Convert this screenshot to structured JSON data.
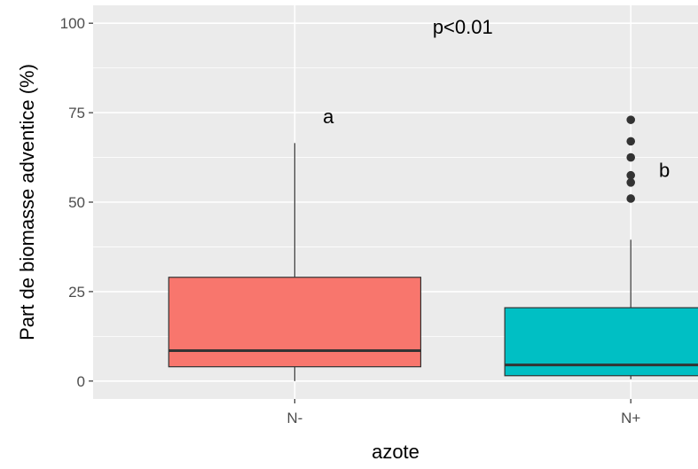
{
  "chart_data": {
    "type": "boxplot",
    "xlabel": "azote",
    "ylabel": "Part de biomasse adventice (%)",
    "categories": [
      "N-",
      "N+"
    ],
    "ylim": [
      -5,
      105
    ],
    "yticks": [
      0,
      25,
      50,
      75,
      100
    ],
    "grid": true,
    "background": "#ebebeb",
    "boxes": [
      {
        "category": "N-",
        "min": 0,
        "q1": 4,
        "median": 8.5,
        "q3": 29,
        "max": 66.5,
        "outliers": [],
        "color": "#f8766d"
      },
      {
        "category": "N+",
        "min": 0.5,
        "q1": 1.5,
        "median": 4.5,
        "q3": 20.5,
        "max": 39.5,
        "outliers": [
          51,
          55.5,
          57.5,
          62.5,
          67,
          73
        ],
        "color": "#00bfc4"
      }
    ],
    "annotations": [
      {
        "text": "p<0.01",
        "x": 1.5,
        "y": 99
      },
      {
        "text": "a",
        "x": 1.1,
        "y": 74
      },
      {
        "text": "b",
        "x": 2.1,
        "y": 59
      }
    ]
  }
}
